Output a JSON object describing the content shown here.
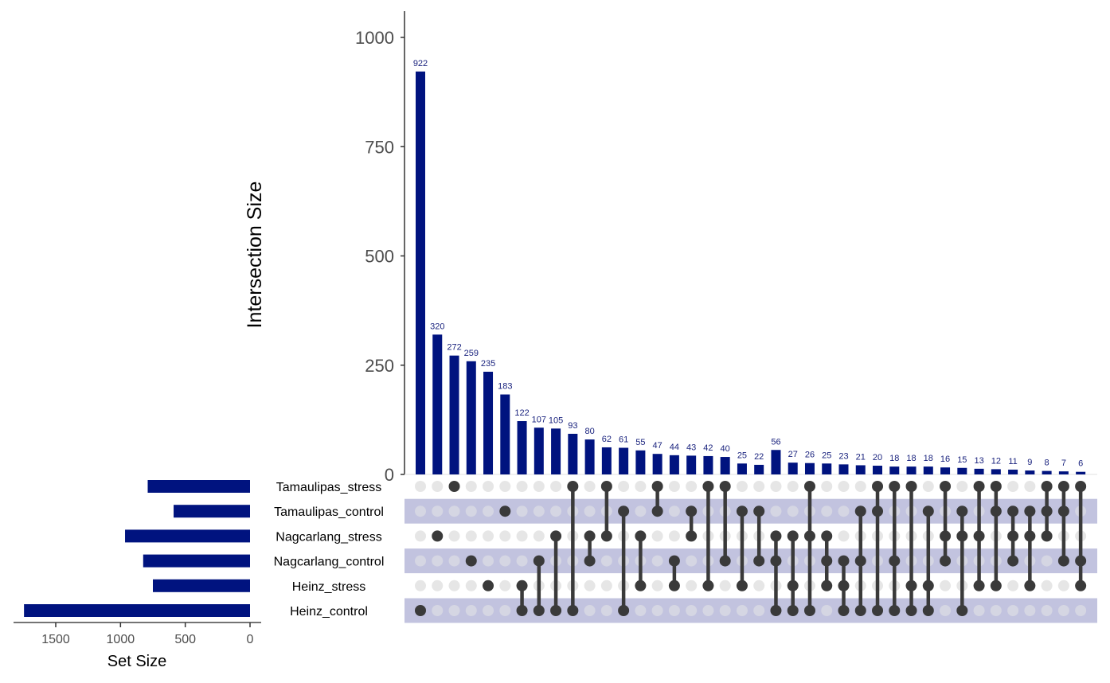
{
  "chart_data": {
    "type": "upset",
    "intersection_axis": {
      "label": "Intersection Size",
      "range": [
        0,
        1060
      ],
      "ticks": [
        0,
        250,
        500,
        750,
        1000
      ],
      "tick_labels": [
        "0",
        "250",
        "500",
        "750",
        "1000"
      ]
    },
    "set_size_axis": {
      "label": "Set Size",
      "range": [
        1800,
        0
      ],
      "ticks": [
        1500,
        1000,
        500,
        0
      ],
      "tick_labels": [
        "1500",
        "1000",
        "500",
        "0"
      ]
    },
    "sets": [
      {
        "name": "Tamaulipas_stress",
        "size": 790
      },
      {
        "name": "Tamaulipas_control",
        "size": 590
      },
      {
        "name": "Nagcarlang_stress",
        "size": 965
      },
      {
        "name": "Nagcarlang_control",
        "size": 825
      },
      {
        "name": "Heinz_stress",
        "size": 750
      },
      {
        "name": "Heinz_control",
        "size": 1745
      }
    ],
    "intersections": [
      {
        "value": 922,
        "label": "922",
        "sets": [
          "Heinz_control"
        ]
      },
      {
        "value": 320,
        "label": "320",
        "sets": [
          "Nagcarlang_stress"
        ]
      },
      {
        "value": 272,
        "label": "272",
        "sets": [
          "Tamaulipas_stress"
        ]
      },
      {
        "value": 259,
        "label": "259",
        "sets": [
          "Nagcarlang_control"
        ]
      },
      {
        "value": 235,
        "label": "235",
        "sets": [
          "Heinz_stress"
        ]
      },
      {
        "value": 183,
        "label": "183",
        "sets": [
          "Tamaulipas_control"
        ]
      },
      {
        "value": 122,
        "label": "122",
        "sets": [
          "Heinz_stress",
          "Heinz_control"
        ]
      },
      {
        "value": 107,
        "label": "107",
        "sets": [
          "Nagcarlang_control",
          "Heinz_control"
        ]
      },
      {
        "value": 105,
        "label": "105",
        "sets": [
          "Nagcarlang_stress",
          "Heinz_control"
        ]
      },
      {
        "value": 93,
        "label": "93",
        "sets": [
          "Tamaulipas_stress",
          "Heinz_control"
        ]
      },
      {
        "value": 80,
        "label": "80",
        "sets": [
          "Nagcarlang_stress",
          "Nagcarlang_control"
        ]
      },
      {
        "value": 62,
        "label": "62",
        "sets": [
          "Tamaulipas_stress",
          "Nagcarlang_stress"
        ]
      },
      {
        "value": 61,
        "label": "61",
        "sets": [
          "Tamaulipas_control",
          "Heinz_control"
        ]
      },
      {
        "value": 55,
        "label": "55",
        "sets": [
          "Nagcarlang_stress",
          "Heinz_stress"
        ]
      },
      {
        "value": 47,
        "label": "47",
        "sets": [
          "Tamaulipas_stress",
          "Tamaulipas_control"
        ]
      },
      {
        "value": 44,
        "label": "44",
        "sets": [
          "Nagcarlang_control",
          "Heinz_stress"
        ]
      },
      {
        "value": 43,
        "label": "43",
        "sets": [
          "Tamaulipas_control",
          "Nagcarlang_stress"
        ]
      },
      {
        "value": 42,
        "label": "42",
        "sets": [
          "Tamaulipas_stress",
          "Heinz_stress"
        ]
      },
      {
        "value": 40,
        "label": "40",
        "sets": [
          "Tamaulipas_stress",
          "Nagcarlang_control"
        ]
      },
      {
        "value": 25,
        "label": "25",
        "sets": [
          "Tamaulipas_control",
          "Heinz_stress"
        ]
      },
      {
        "value": 22,
        "label": "22",
        "sets": [
          "Tamaulipas_control",
          "Nagcarlang_control"
        ]
      },
      {
        "value": 56,
        "label": "56",
        "sets": [
          "Nagcarlang_stress",
          "Nagcarlang_control",
          "Heinz_control"
        ]
      },
      {
        "value": 27,
        "label": "27",
        "sets": [
          "Nagcarlang_stress",
          "Heinz_stress",
          "Heinz_control"
        ]
      },
      {
        "value": 26,
        "label": "26",
        "sets": [
          "Tamaulipas_stress",
          "Nagcarlang_stress",
          "Heinz_control"
        ]
      },
      {
        "value": 25,
        "label": "25",
        "sets": [
          "Nagcarlang_stress",
          "Nagcarlang_control",
          "Heinz_stress"
        ]
      },
      {
        "value": 23,
        "label": "23",
        "sets": [
          "Nagcarlang_control",
          "Heinz_stress",
          "Heinz_control"
        ]
      },
      {
        "value": 21,
        "label": "21",
        "sets": [
          "Tamaulipas_control",
          "Nagcarlang_control",
          "Heinz_control"
        ]
      },
      {
        "value": 20,
        "label": "20",
        "sets": [
          "Tamaulipas_stress",
          "Tamaulipas_control",
          "Heinz_control"
        ]
      },
      {
        "value": 18,
        "label": "18",
        "sets": [
          "Tamaulipas_stress",
          "Nagcarlang_control",
          "Heinz_control"
        ]
      },
      {
        "value": 18,
        "label": "18",
        "sets": [
          "Tamaulipas_stress",
          "Heinz_stress",
          "Heinz_control"
        ]
      },
      {
        "value": 18,
        "label": "18",
        "sets": [
          "Tamaulipas_control",
          "Heinz_stress",
          "Heinz_control"
        ]
      },
      {
        "value": 16,
        "label": "16",
        "sets": [
          "Tamaulipas_stress",
          "Nagcarlang_stress",
          "Nagcarlang_control"
        ]
      },
      {
        "value": 15,
        "label": "15",
        "sets": [
          "Tamaulipas_control",
          "Nagcarlang_stress",
          "Heinz_control"
        ]
      },
      {
        "value": 13,
        "label": "13",
        "sets": [
          "Tamaulipas_stress",
          "Nagcarlang_stress",
          "Heinz_stress"
        ]
      },
      {
        "value": 12,
        "label": "12",
        "sets": [
          "Tamaulipas_stress",
          "Tamaulipas_control",
          "Heinz_stress"
        ]
      },
      {
        "value": 11,
        "label": "11",
        "sets": [
          "Tamaulipas_control",
          "Nagcarlang_stress",
          "Nagcarlang_control"
        ]
      },
      {
        "value": 9,
        "label": "9",
        "sets": [
          "Tamaulipas_control",
          "Nagcarlang_stress",
          "Heinz_stress"
        ]
      },
      {
        "value": 8,
        "label": "8",
        "sets": [
          "Tamaulipas_stress",
          "Tamaulipas_control",
          "Nagcarlang_stress"
        ]
      },
      {
        "value": 7,
        "label": "7",
        "sets": [
          "Tamaulipas_stress",
          "Tamaulipas_control",
          "Nagcarlang_control"
        ]
      },
      {
        "value": 6,
        "label": "6",
        "sets": [
          "Tamaulipas_stress",
          "Nagcarlang_control",
          "Heinz_stress"
        ]
      }
    ],
    "colors": {
      "bar": "#00137f",
      "label": "#1a237e",
      "dot_active": "#3a3a3a",
      "dot_inactive": "#e6e6e6",
      "stripe": "#c2c3df"
    }
  }
}
